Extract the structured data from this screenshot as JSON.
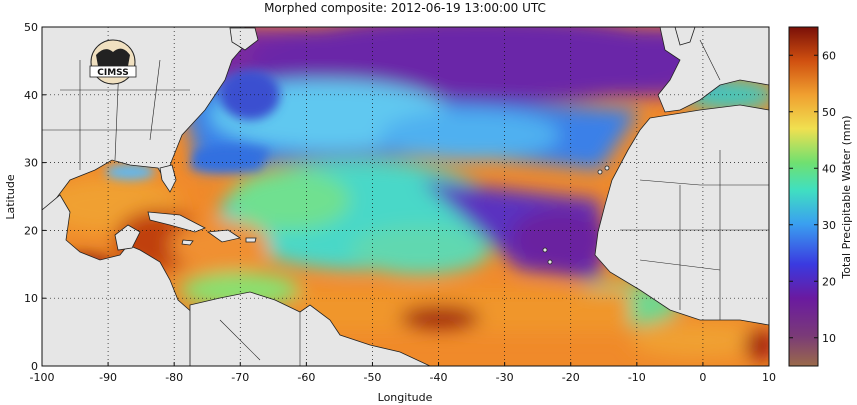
{
  "title": "Morphed composite: 2012-06-19 13:00:00 UTC",
  "logo_text": "CIMSS",
  "x_axis": {
    "label": "Longitude",
    "range": [
      -100,
      10
    ],
    "ticks": [
      -100,
      -90,
      -80,
      -70,
      -60,
      -50,
      -40,
      -30,
      -20,
      -10,
      0,
      10
    ]
  },
  "y_axis": {
    "label": "Latitude",
    "range": [
      0,
      50
    ],
    "ticks": [
      0,
      10,
      20,
      30,
      40,
      50
    ]
  },
  "colorbar": {
    "label": "Total Precipitable Water (mm)",
    "range": [
      5,
      65
    ],
    "ticks": [
      10,
      20,
      30,
      40,
      50,
      60
    ]
  },
  "colors": {
    "land": "#e6e6e6",
    "border": "#222222"
  }
}
